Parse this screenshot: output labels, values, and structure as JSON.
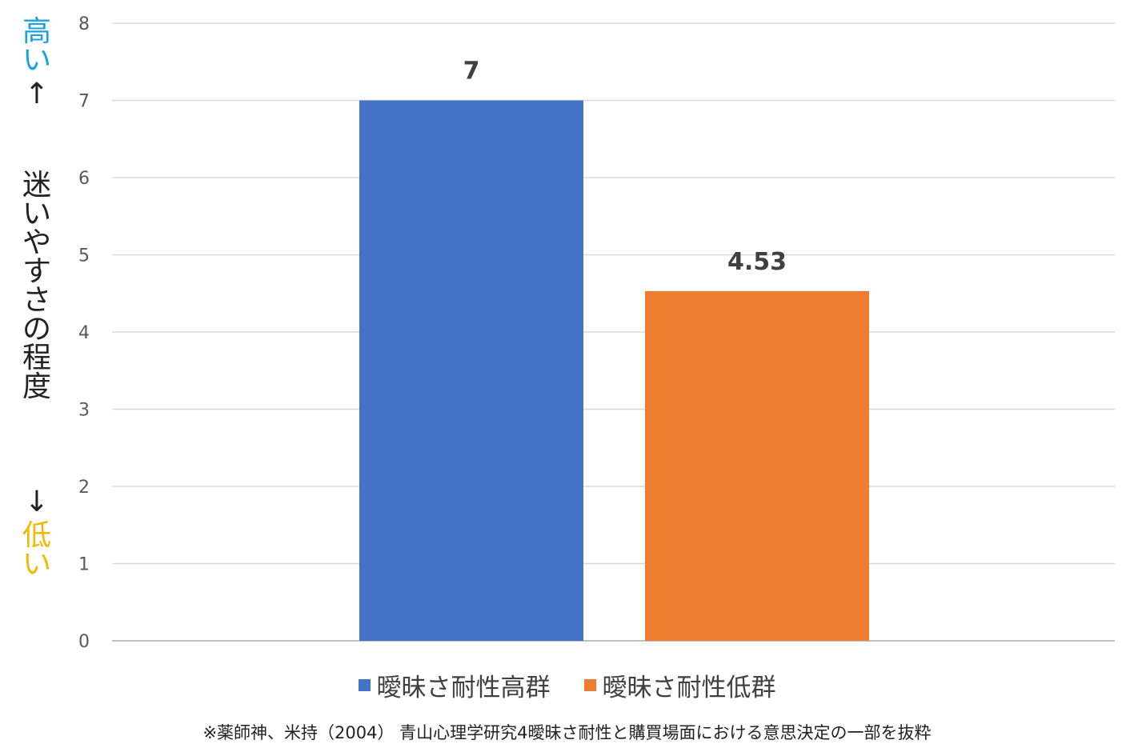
{
  "y_axis_annotation": {
    "high_text": "高い",
    "high_arrow": "↑",
    "title": "迷いやすさの程度",
    "low_arrow": "↓",
    "low_text": "低い",
    "high_color": "#1ba1e2",
    "low_color": "#f5b800"
  },
  "chart_data": {
    "type": "bar",
    "title": "",
    "xlabel": "",
    "ylabel": "迷いやすさの程度",
    "ylim": [
      0,
      8
    ],
    "yticks": [
      0,
      1,
      2,
      3,
      4,
      5,
      6,
      7,
      8
    ],
    "grid": true,
    "legend_position": "bottom",
    "series": [
      {
        "name": "曖昧さ耐性高群",
        "values": [
          7
        ],
        "data_label": "7",
        "color": "#4472c4"
      },
      {
        "name": "曖昧さ耐性低群",
        "values": [
          4.53
        ],
        "data_label": "4.53",
        "color": "#ed7d31"
      }
    ]
  },
  "legend": {
    "items": [
      {
        "label": "曖昧さ耐性高群",
        "color": "#4472c4"
      },
      {
        "label": "曖昧さ耐性低群",
        "color": "#ed7d31"
      }
    ]
  },
  "source_note": "※薬師神、米持（2004） 青山心理学研究4曖昧さ耐性と購買場面における意思決定の一部を抜粋"
}
